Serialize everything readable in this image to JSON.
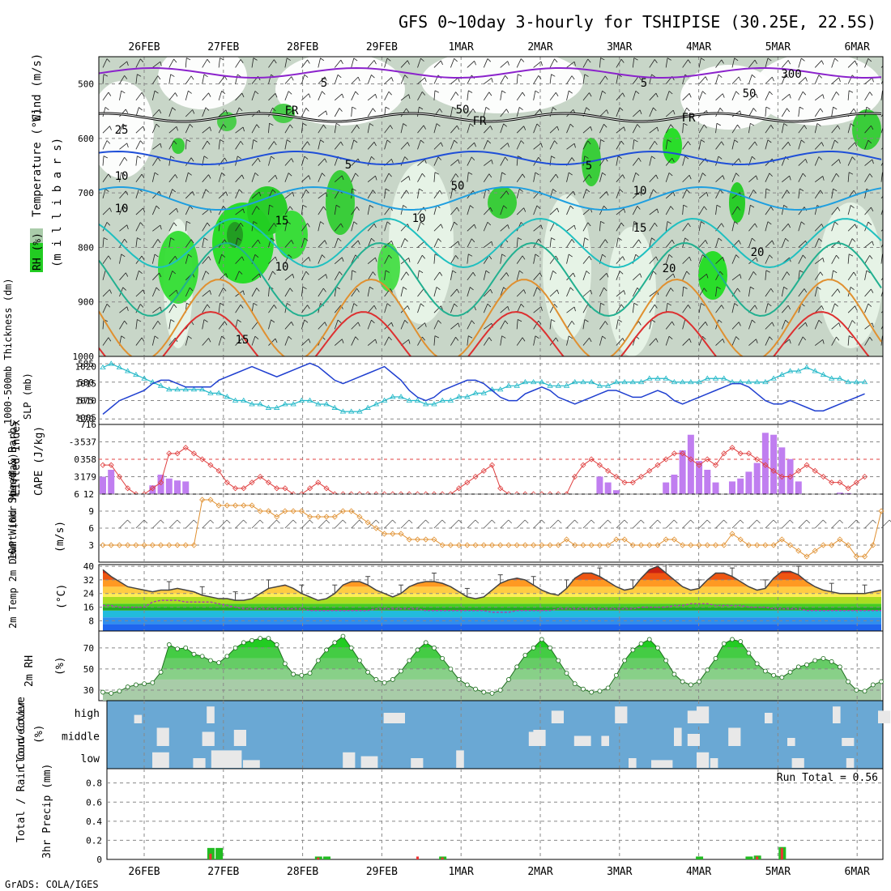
{
  "header": {
    "title": "GFS 0~10day 3-hourly for TSHIPISE (30.25E, 22.5S)"
  },
  "footer": {
    "credit": "GrADS: COLA/IGES"
  },
  "chart_data": {
    "type": "meteogram",
    "x_dates": [
      "26FEB",
      "27FEB",
      "28FEB",
      "29FEB",
      "1MAR",
      "2MAR",
      "3MAR",
      "4MAR",
      "5MAR",
      "6MAR"
    ],
    "panels": [
      {
        "id": "upper_air",
        "ylabels": [
          {
            "text": "RH (%)",
            "color": "#19c219"
          },
          {
            "text": "Temperature (°C)",
            "color": "#e0a030"
          },
          {
            "text": "Wind (m/s)",
            "color": "#000000"
          },
          {
            "text": "(m i l l i b a r s)",
            "color": "#000000"
          }
        ],
        "ylim": [
          1000,
          450
        ],
        "yticks": [
          500,
          600,
          700,
          800,
          900,
          1000
        ],
        "contour_labels": [
          "5",
          "5",
          "FR",
          "FR",
          "FR",
          "10",
          "10",
          "5",
          "5",
          "10",
          "15",
          "10",
          "10",
          "15",
          "15",
          "20",
          "20",
          "25",
          "50",
          "50",
          "50",
          "300"
        ]
      },
      {
        "id": "slp_thickness",
        "ylabel_left": "1000-500mb Thickness (dm)",
        "ylabel_right": "SLP (mb)",
        "left_ticks": [
          570,
          575,
          580,
          585
        ],
        "right_ticks": [
          1005,
          1010,
          1015,
          1020
        ],
        "slp": [
          1006,
          1008,
          1010,
          1011,
          1012,
          1013,
          1015,
          1016,
          1016,
          1015,
          1014,
          1014,
          1014,
          1014,
          1016,
          1017,
          1018,
          1019,
          1020,
          1019,
          1018,
          1017,
          1018,
          1019,
          1020,
          1021,
          1020,
          1018,
          1016,
          1015,
          1016,
          1017,
          1018,
          1019,
          1020,
          1018,
          1016,
          1013,
          1011,
          1010,
          1011,
          1013,
          1014,
          1015,
          1016,
          1016,
          1015,
          1013,
          1011,
          1010,
          1010,
          1012,
          1013,
          1014,
          1013,
          1011,
          1010,
          1009,
          1010,
          1011,
          1012,
          1013,
          1013,
          1012,
          1011,
          1011,
          1012,
          1013,
          1012,
          1010,
          1009,
          1010,
          1011,
          1012,
          1013,
          1014,
          1015,
          1015,
          1014,
          1012,
          1010,
          1009,
          1009,
          1010,
          1009,
          1008,
          1007,
          1007,
          1008,
          1009,
          1010,
          1011,
          1012
        ],
        "thickness": [
          584,
          585,
          584,
          583,
          582,
          581,
          580,
          579,
          578,
          578,
          578,
          578,
          578,
          577,
          577,
          576,
          575,
          575,
          574,
          574,
          573,
          573,
          574,
          574,
          575,
          575,
          574,
          574,
          573,
          572,
          572,
          572,
          573,
          574,
          575,
          576,
          576,
          575,
          575,
          574,
          574,
          575,
          575,
          576,
          576,
          577,
          577,
          578,
          578,
          579,
          579,
          580,
          580,
          580,
          579,
          579,
          579,
          580,
          580,
          580,
          579,
          579,
          580,
          580,
          580,
          580,
          581,
          581,
          581,
          580,
          580,
          580,
          580,
          581,
          581,
          581,
          580,
          580,
          580,
          580,
          580,
          581,
          582,
          583,
          583,
          584,
          583,
          582,
          581,
          581,
          580,
          580,
          580
        ]
      },
      {
        "id": "cape_li",
        "ylabel_left": "Lifted Index",
        "ylabel_right": "CAPE (J/kg)",
        "left_ticks": [
          "-3",
          "0",
          "3",
          "6"
        ],
        "right_ticks": [
          "179",
          "358",
          "537",
          "716"
        ],
        "cape_bars": [
          [
            0,
            179
          ],
          [
            1,
            250
          ],
          [
            6,
            90
          ],
          [
            7,
            200
          ],
          [
            8,
            160
          ],
          [
            9,
            140
          ],
          [
            10,
            130
          ],
          [
            60,
            180
          ],
          [
            61,
            120
          ],
          [
            62,
            40
          ],
          [
            68,
            120
          ],
          [
            69,
            200
          ],
          [
            70,
            450
          ],
          [
            71,
            610
          ],
          [
            72,
            340
          ],
          [
            73,
            250
          ],
          [
            74,
            120
          ],
          [
            76,
            130
          ],
          [
            77,
            160
          ],
          [
            78,
            230
          ],
          [
            79,
            320
          ],
          [
            80,
            630
          ],
          [
            81,
            610
          ],
          [
            82,
            480
          ],
          [
            83,
            360
          ],
          [
            84,
            130
          ],
          [
            89,
            15
          ],
          [
            90,
            10
          ]
        ],
        "lifted_index": [
          1,
          1,
          3,
          5,
          6,
          6,
          5,
          4,
          -1,
          -1,
          -2,
          -1,
          0,
          1,
          2,
          4,
          5,
          5,
          4,
          3,
          4,
          5,
          5,
          6,
          6,
          5,
          4,
          5,
          6,
          6,
          6,
          6,
          6,
          6,
          6,
          6,
          6,
          6,
          6,
          6,
          6,
          6,
          6,
          5,
          4,
          3,
          2,
          1,
          5,
          6,
          6,
          6,
          6,
          6,
          6,
          6,
          6,
          3,
          1,
          0,
          1,
          2,
          3,
          4,
          4,
          3,
          2,
          1,
          0,
          -1,
          -1,
          0,
          1,
          0,
          1,
          -1,
          -2,
          -1,
          -1,
          0,
          1,
          2,
          3,
          3,
          2,
          1,
          2,
          3,
          4,
          4,
          5,
          4,
          3
        ]
      },
      {
        "id": "wind10m",
        "ylabel_left": "10m Wind Speed & Barbs",
        "ylabel_right": "(m/s)",
        "yticks": [
          3,
          6,
          9,
          12
        ],
        "speed": [
          3,
          3,
          3,
          3,
          3,
          3,
          3,
          3,
          3,
          3,
          3,
          3,
          11,
          11,
          10,
          10,
          10,
          10,
          10,
          9,
          9,
          8,
          9,
          9,
          9,
          8,
          8,
          8,
          8,
          9,
          9,
          8,
          7,
          6,
          5,
          5,
          5,
          4,
          4,
          4,
          4,
          3,
          3,
          3,
          3,
          3,
          3,
          3,
          3,
          3,
          3,
          3,
          3,
          3,
          3,
          3,
          4,
          3,
          3,
          3,
          3,
          3,
          4,
          4,
          3,
          3,
          3,
          3,
          4,
          4,
          3,
          3,
          3,
          3,
          3,
          3,
          5,
          4,
          3,
          3,
          3,
          3,
          4,
          3,
          2,
          1,
          2,
          3,
          3,
          4,
          3,
          1,
          1,
          3,
          9
        ]
      },
      {
        "id": "temp2m",
        "ylabel_left": "2m Temp 2m DewPt (6hr Min/Max)",
        "ylabel_right": "(°C)",
        "yticks": [
          8,
          16,
          24,
          32,
          40
        ],
        "temp": [
          38,
          34,
          31,
          28,
          27,
          26,
          25,
          26,
          26,
          27,
          26,
          25,
          23,
          22,
          21,
          21,
          20,
          20,
          21,
          24,
          27,
          28,
          29,
          27,
          24,
          22,
          20,
          21,
          24,
          29,
          31,
          31,
          29,
          26,
          24,
          22,
          24,
          28,
          30,
          31,
          31,
          30,
          28,
          25,
          22,
          21,
          22,
          26,
          30,
          32,
          33,
          32,
          29,
          26,
          24,
          23,
          27,
          33,
          36,
          36,
          34,
          31,
          28,
          26,
          27,
          33,
          38,
          40,
          36,
          32,
          28,
          26,
          27,
          32,
          36,
          36,
          34,
          31,
          28,
          26,
          27,
          33,
          37,
          37,
          35,
          31,
          28,
          26,
          25,
          24,
          24,
          24,
          24,
          25,
          26
        ],
        "dewpt": [
          17,
          17,
          16,
          16,
          16,
          16,
          19,
          20,
          20,
          20,
          19,
          19,
          19,
          19,
          18,
          17,
          16,
          15,
          15,
          15,
          15,
          15,
          15,
          15,
          15,
          14,
          14,
          14,
          14,
          14,
          14,
          14,
          14,
          15,
          15,
          15,
          15,
          15,
          15,
          14,
          14,
          14,
          14,
          14,
          14,
          14,
          14,
          13,
          13,
          13,
          14,
          14,
          14,
          14,
          14,
          15,
          15,
          15,
          15,
          15,
          15,
          15,
          15,
          15,
          15,
          16,
          16,
          16,
          16,
          17,
          17,
          18,
          18,
          18,
          17,
          17,
          17,
          17,
          16,
          16,
          16,
          15,
          15,
          15,
          15,
          14,
          14,
          14,
          14,
          14,
          14,
          14,
          14,
          14,
          14
        ]
      },
      {
        "id": "rh2m",
        "ylabel_left": "2m RH",
        "ylabel_right": "(%)",
        "yticks": [
          30,
          50,
          70
        ],
        "rh": [
          28,
          27,
          29,
          33,
          35,
          36,
          37,
          47,
          73,
          69,
          70,
          64,
          62,
          58,
          56,
          62,
          70,
          75,
          77,
          79,
          79,
          73,
          55,
          45,
          44,
          46,
          58,
          68,
          75,
          81,
          70,
          58,
          47,
          40,
          37,
          40,
          48,
          58,
          68,
          75,
          70,
          60,
          50,
          40,
          35,
          31,
          28,
          27,
          30,
          40,
          52,
          63,
          70,
          78,
          70,
          58,
          46,
          36,
          31,
          28,
          29,
          32,
          44,
          58,
          68,
          74,
          78,
          70,
          58,
          45,
          38,
          35,
          38,
          49,
          60,
          74,
          78,
          76,
          65,
          55,
          48,
          44,
          42,
          47,
          52,
          54,
          58,
          60,
          57,
          52,
          38,
          30,
          29,
          35,
          38,
          42,
          46,
          50,
          48,
          43
        ]
      },
      {
        "id": "cloud",
        "ylabel_left": "Cloud Cover",
        "ylabel_right": "(%)",
        "levels": [
          "high",
          "middle",
          "low"
        ]
      },
      {
        "id": "precip",
        "ylabel_left": "Total / Rain Convective",
        "ylabel_right": "3hr Precip (mm)",
        "yticks": [
          "0",
          "0.2",
          "0.4",
          "0.6",
          "0.8"
        ],
        "annotation": "Run Total = 0.56",
        "total": [
          [
            13,
            0.12
          ],
          [
            14,
            0.12
          ],
          [
            26,
            0.03
          ],
          [
            27,
            0.03
          ],
          [
            41,
            0.03
          ],
          [
            72,
            0.03
          ],
          [
            78,
            0.03
          ],
          [
            79,
            0.04
          ],
          [
            82,
            0.13
          ]
        ],
        "convective": [
          [
            13,
            0.06
          ],
          [
            26,
            0.02
          ],
          [
            38,
            0.03
          ],
          [
            41,
            0.02
          ],
          [
            79,
            0.03
          ],
          [
            82,
            0.12
          ]
        ]
      }
    ]
  }
}
